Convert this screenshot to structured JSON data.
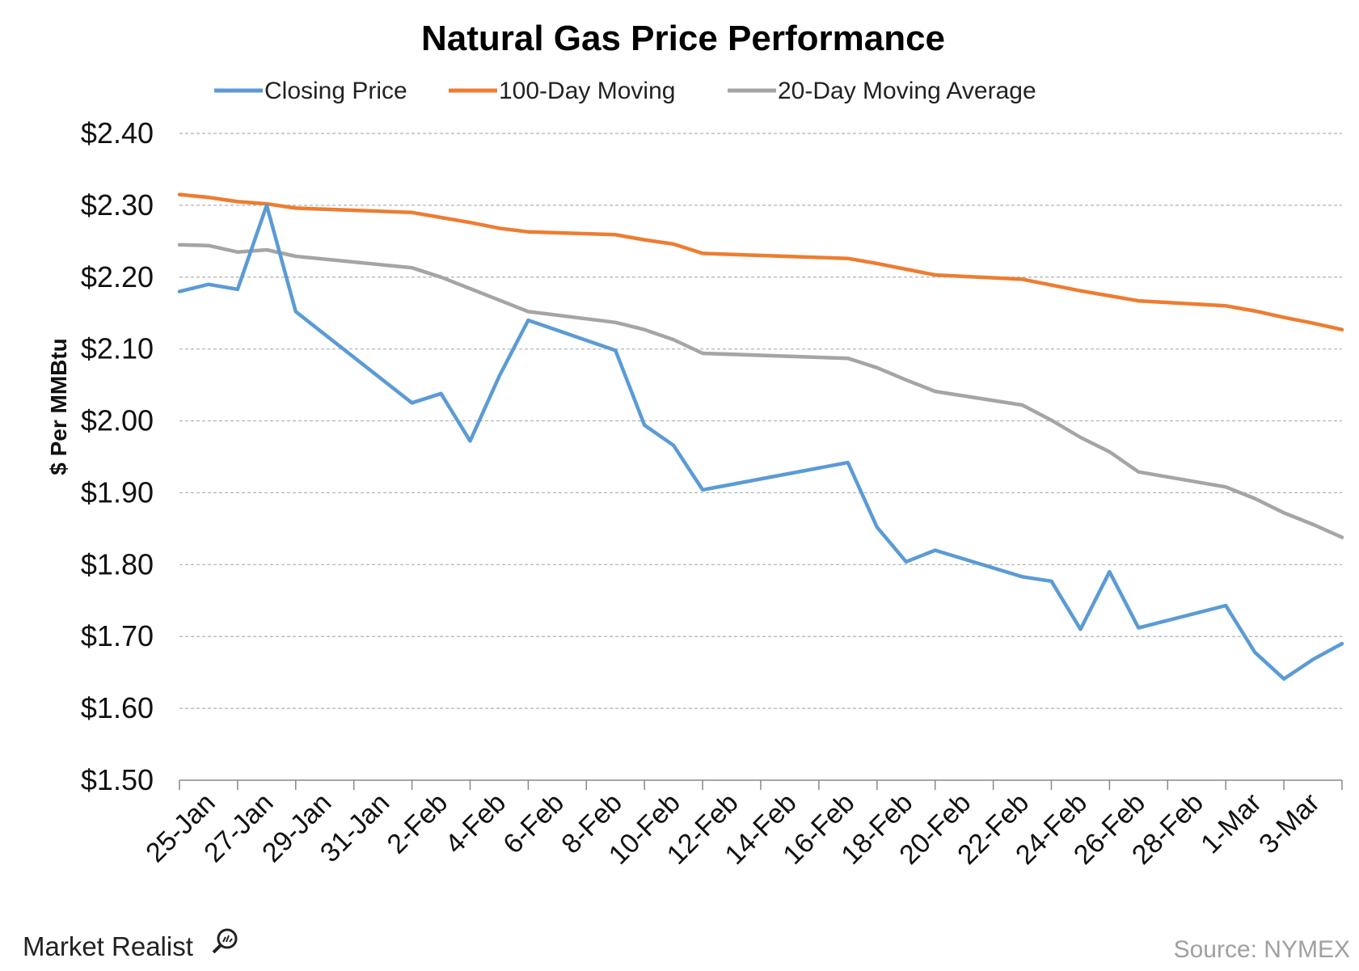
{
  "brand": {
    "name": "Market Realist"
  },
  "source_note": "Source: NYMEX",
  "chart_data": {
    "type": "line",
    "title": "Natural Gas Price Performance",
    "xlabel": "",
    "ylabel": "$ Per MMBtu",
    "ylim": [
      1.5,
      2.4
    ],
    "yticks": [
      "$1.50",
      "$1.60",
      "$1.70",
      "$1.80",
      "$1.90",
      "$2.00",
      "$2.10",
      "$2.20",
      "$2.30",
      "$2.40"
    ],
    "xlim": [
      "2016-01-24",
      "2016-03-04"
    ],
    "xtick_labels": [
      "25-Jan",
      "27-Jan",
      "29-Jan",
      "31-Jan",
      "2-Feb",
      "4-Feb",
      "6-Feb",
      "8-Feb",
      "10-Feb",
      "12-Feb",
      "14-Feb",
      "16-Feb",
      "18-Feb",
      "20-Feb",
      "22-Feb",
      "24-Feb",
      "26-Feb",
      "28-Feb",
      "1-Mar",
      "3-Mar"
    ],
    "grid": true,
    "legend_position": "top",
    "series": [
      {
        "name": "Closing Price",
        "color": "#5b9bd5",
        "x": [
          "2016-01-24",
          "2016-01-25",
          "2016-01-26",
          "2016-01-27",
          "2016-01-28",
          "2016-02-01",
          "2016-02-02",
          "2016-02-03",
          "2016-02-04",
          "2016-02-05",
          "2016-02-08",
          "2016-02-09",
          "2016-02-10",
          "2016-02-11",
          "2016-02-16",
          "2016-02-17",
          "2016-02-18",
          "2016-02-19",
          "2016-02-22",
          "2016-02-23",
          "2016-02-24",
          "2016-02-25",
          "2016-02-26",
          "2016-02-29",
          "2016-03-01",
          "2016-03-02",
          "2016-03-03",
          "2016-03-04"
        ],
        "values": [
          2.18,
          2.19,
          2.183,
          2.3,
          2.152,
          2.025,
          2.038,
          1.972,
          2.062,
          2.14,
          2.098,
          1.994,
          1.966,
          1.904,
          1.942,
          1.852,
          1.804,
          1.82,
          1.783,
          1.777,
          1.71,
          1.79,
          1.712,
          1.743,
          1.678,
          1.641,
          1.668,
          1.69
        ]
      },
      {
        "name": "100-Day Moving",
        "color": "#ed7d31",
        "x": [
          "2016-01-24",
          "2016-01-25",
          "2016-01-26",
          "2016-01-27",
          "2016-01-28",
          "2016-02-01",
          "2016-02-02",
          "2016-02-03",
          "2016-02-04",
          "2016-02-05",
          "2016-02-08",
          "2016-02-09",
          "2016-02-10",
          "2016-02-11",
          "2016-02-16",
          "2016-02-17",
          "2016-02-18",
          "2016-02-19",
          "2016-02-22",
          "2016-02-23",
          "2016-02-24",
          "2016-02-25",
          "2016-02-26",
          "2016-02-29",
          "2016-03-01",
          "2016-03-02",
          "2016-03-03",
          "2016-03-04"
        ],
        "values": [
          2.315,
          2.311,
          2.305,
          2.302,
          2.296,
          2.29,
          2.283,
          2.276,
          2.268,
          2.263,
          2.259,
          2.252,
          2.246,
          2.233,
          2.226,
          2.219,
          2.211,
          2.203,
          2.197,
          2.189,
          2.181,
          2.174,
          2.167,
          2.16,
          2.153,
          2.144,
          2.136,
          2.127
        ]
      },
      {
        "name": "20-Day Moving Average",
        "color": "#a5a5a5",
        "x": [
          "2016-01-24",
          "2016-01-25",
          "2016-01-26",
          "2016-01-27",
          "2016-01-28",
          "2016-02-01",
          "2016-02-02",
          "2016-02-03",
          "2016-02-04",
          "2016-02-05",
          "2016-02-08",
          "2016-02-09",
          "2016-02-10",
          "2016-02-11",
          "2016-02-16",
          "2016-02-17",
          "2016-02-18",
          "2016-02-19",
          "2016-02-22",
          "2016-02-23",
          "2016-02-24",
          "2016-02-25",
          "2016-02-26",
          "2016-02-29",
          "2016-03-01",
          "2016-03-02",
          "2016-03-03",
          "2016-03-04"
        ],
        "values": [
          2.245,
          2.244,
          2.235,
          2.238,
          2.229,
          2.213,
          2.2,
          2.184,
          2.168,
          2.152,
          2.137,
          2.127,
          2.113,
          2.094,
          2.087,
          2.074,
          2.057,
          2.041,
          2.022,
          2.001,
          1.977,
          1.957,
          1.929,
          1.908,
          1.892,
          1.872,
          1.856,
          1.838
        ]
      }
    ]
  }
}
